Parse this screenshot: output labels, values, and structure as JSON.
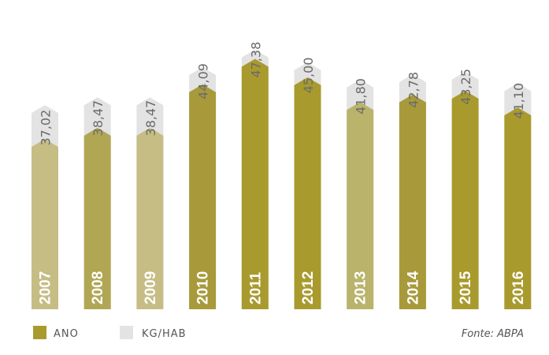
{
  "chart_data": {
    "type": "bar",
    "categories": [
      "2007",
      "2008",
      "2009",
      "2010",
      "2011",
      "2012",
      "2013",
      "2014",
      "2015",
      "2016"
    ],
    "series": [
      {
        "name": "KG/HAB",
        "values": [
          37.02,
          38.47,
          38.47,
          44.09,
          47.38,
          45.0,
          41.8,
          42.78,
          43.25,
          41.1
        ]
      }
    ],
    "value_labels": [
      "37,02",
      "38,47",
      "38,47",
      "44,09",
      "47,38",
      "45,00",
      "41,80",
      "42,78",
      "43,25",
      "41,10"
    ],
    "year_colors": [
      "#c6bd85",
      "#b1a653",
      "#c6bd85",
      "#a89a3a",
      "#a99a2e",
      "#a99a2e",
      "#bab36b",
      "#a89a3a",
      "#a99a2e",
      "#a99a2e"
    ],
    "bg_color": "#e3e3e3",
    "legend": [
      {
        "label": "ANO",
        "color": "#a99a2e"
      },
      {
        "label": "KG/HAB",
        "color": "#e3e3e3"
      }
    ],
    "legend_position": "bottom-left",
    "source": "Fonte: ABPA"
  }
}
